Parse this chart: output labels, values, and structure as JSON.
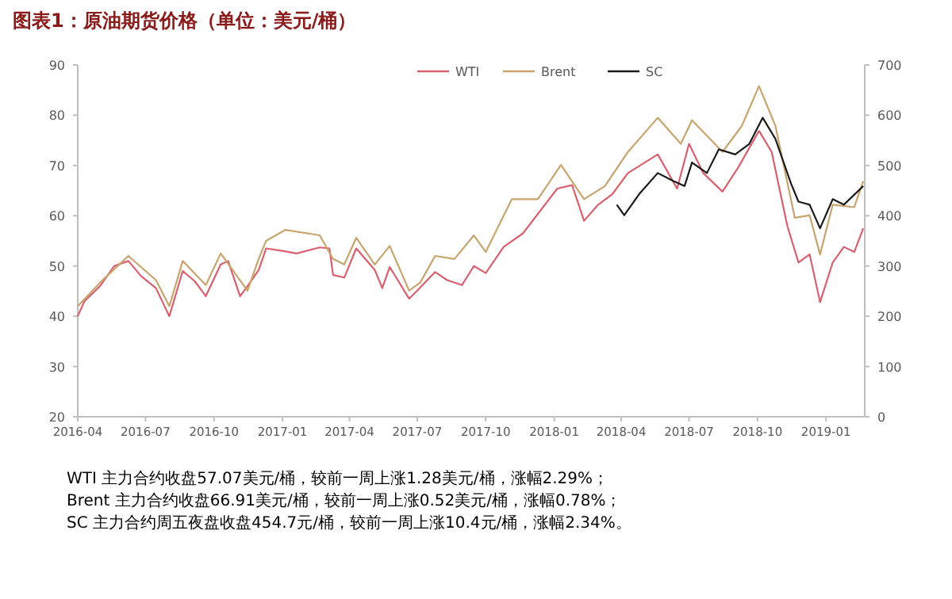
{
  "chart_data": {
    "type": "line",
    "title": "图表1：原油期货价格（单位：美元/桶）",
    "annotations": [
      "WTI 主力合约收盘57.07美元/桶，较前一周上涨1.28美元/桶，涨幅2.29%；",
      "Brent 主力合约收盘66.91美元/桶，较前一周上涨0.52美元/桶，涨幅0.78%；",
      "SC 主力合约周五夜盘收盘454.7元/桶，较前一周上涨10.4元/桶，涨幅2.34%。"
    ],
    "xlim": [
      "2016-04-01",
      "2019-02-22"
    ],
    "xticks": [
      "2016-04",
      "2016-07",
      "2016-10",
      "2017-01",
      "2017-04",
      "2017-07",
      "2017-10",
      "2018-01",
      "2018-04",
      "2018-07",
      "2018-10",
      "2019-01"
    ],
    "ylim": [
      20,
      90
    ],
    "yticks": [
      20,
      30,
      40,
      50,
      60,
      70,
      80,
      90
    ],
    "y2lim": [
      0,
      700
    ],
    "y2ticks": [
      0,
      100,
      200,
      300,
      400,
      500,
      600,
      700
    ],
    "legend": "top",
    "series": [
      {
        "name": "WTI",
        "color": "#d9606e",
        "x": [
          "2016-04-01",
          "2016-04-10",
          "2016-05-01",
          "2016-05-20",
          "2016-06-08",
          "2016-06-25",
          "2016-07-15",
          "2016-08-02",
          "2016-08-20",
          "2016-09-05",
          "2016-09-20",
          "2016-10-10",
          "2016-10-20",
          "2016-11-05",
          "2016-11-15",
          "2016-11-30",
          "2016-12-10",
          "2017-01-01",
          "2017-01-20",
          "2017-02-20",
          "2017-03-05",
          "2017-03-10",
          "2017-03-25",
          "2017-04-10",
          "2017-05-05",
          "2017-05-15",
          "2017-05-25",
          "2017-06-20",
          "2017-07-01",
          "2017-07-25",
          "2017-08-10",
          "2017-08-30",
          "2017-09-15",
          "2017-10-01",
          "2017-10-25",
          "2017-11-20",
          "2018-01-05",
          "2018-01-25",
          "2018-02-10",
          "2018-03-01",
          "2018-03-20",
          "2018-04-10",
          "2018-05-20",
          "2018-06-15",
          "2018-07-01",
          "2018-07-20",
          "2018-08-15",
          "2018-09-05",
          "2018-10-03",
          "2018-10-20",
          "2018-11-10",
          "2018-11-25",
          "2018-12-10",
          "2018-12-24",
          "2019-01-10",
          "2019-01-25",
          "2019-02-08",
          "2019-02-20"
        ],
        "values": [
          40,
          43,
          46,
          50,
          51,
          48,
          45.6,
          40,
          49,
          47,
          44,
          50.3,
          51,
          44,
          46,
          49.2,
          53.5,
          53,
          52.5,
          53.7,
          53.5,
          48.2,
          47.7,
          53.5,
          49.2,
          45.6,
          49.8,
          43.5,
          45.1,
          48.8,
          47.2,
          46.2,
          50,
          48.6,
          53.8,
          56.5,
          65.4,
          66.1,
          59,
          62.2,
          64.3,
          68.5,
          72.2,
          65.4,
          74.3,
          68.5,
          64.8,
          69.6,
          76.9,
          72.7,
          58,
          50.7,
          52.3,
          42.8,
          50.7,
          53.8,
          52.8,
          57.5
        ]
      },
      {
        "name": "Brent",
        "color": "#c8a46e",
        "x": [
          "2016-04-01",
          "2016-05-01",
          "2016-06-08",
          "2016-07-15",
          "2016-08-02",
          "2016-08-20",
          "2016-09-20",
          "2016-10-10",
          "2016-11-15",
          "2016-11-30",
          "2016-12-10",
          "2017-01-05",
          "2017-02-20",
          "2017-03-10",
          "2017-03-25",
          "2017-04-10",
          "2017-05-05",
          "2017-05-25",
          "2017-06-20",
          "2017-07-05",
          "2017-07-25",
          "2017-08-20",
          "2017-09-15",
          "2017-10-01",
          "2017-11-05",
          "2017-12-10",
          "2018-01-10",
          "2018-02-10",
          "2018-03-10",
          "2018-04-10",
          "2018-05-20",
          "2018-06-20",
          "2018-07-05",
          "2018-08-15",
          "2018-09-10",
          "2018-10-03",
          "2018-10-25",
          "2018-11-20",
          "2018-12-10",
          "2018-12-24",
          "2019-01-10",
          "2019-02-08",
          "2019-02-20"
        ],
        "values": [
          42,
          46.7,
          52,
          47.2,
          42,
          51,
          46.2,
          52.5,
          45.1,
          51.4,
          55,
          57.2,
          56.1,
          51.4,
          50.3,
          55.6,
          50.3,
          54,
          45.1,
          46.7,
          52,
          51.4,
          56.1,
          52.8,
          63.3,
          63.3,
          70.1,
          63.3,
          65.9,
          72.7,
          79.5,
          74.3,
          79,
          72.7,
          77.9,
          85.8,
          77.9,
          59.6,
          60.1,
          52.3,
          62.2,
          61.7,
          66.9
        ]
      },
      {
        "name": "SC",
        "color": "#1a1a1a",
        "axis": "y2",
        "x": [
          "2018-03-26",
          "2018-04-05",
          "2018-04-25",
          "2018-05-20",
          "2018-06-10",
          "2018-06-25",
          "2018-07-05",
          "2018-07-25",
          "2018-08-10",
          "2018-09-01",
          "2018-09-20",
          "2018-10-08",
          "2018-10-25",
          "2018-11-15",
          "2018-11-25",
          "2018-12-10",
          "2018-12-24",
          "2019-01-10",
          "2019-01-25",
          "2019-02-20"
        ],
        "values": [
          422,
          401,
          443,
          485,
          469,
          459,
          506,
          485,
          532,
          522,
          543,
          595,
          553,
          464,
          428,
          422,
          375,
          433,
          422,
          459
        ]
      }
    ]
  }
}
